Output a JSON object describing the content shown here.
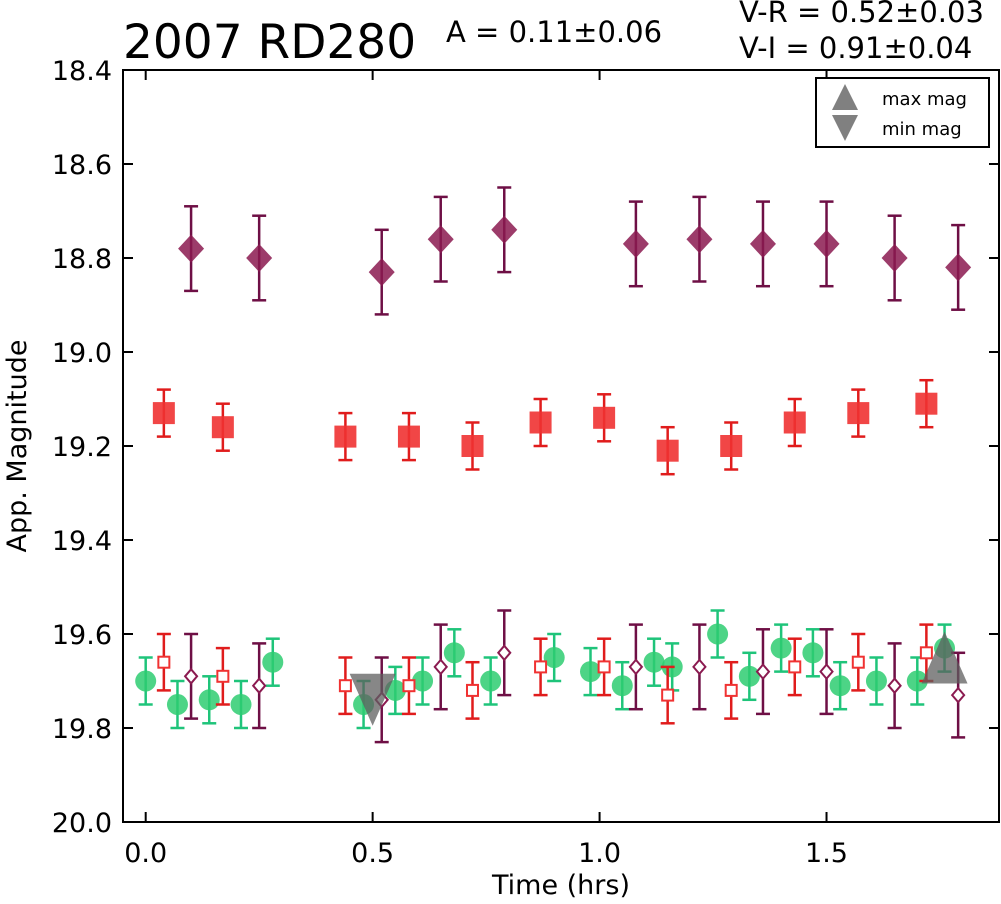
{
  "chart_data": {
    "type": "scatter",
    "title": "2007 RD280",
    "amplitude_text": "A  = 0.11±0.06",
    "color_index_text": [
      "V-R = 0.52±0.03",
      "V-I  = 0.91±0.04"
    ],
    "xlabel": "Time (hrs)",
    "ylabel": "App. Magnitude",
    "xlim": [
      -0.05,
      1.88
    ],
    "ylim": [
      18.4,
      20.0
    ],
    "y_inverted": true,
    "grid": false,
    "legend_position": "top-right",
    "x_ticks": [
      "0.0",
      "0.5",
      "1.0",
      "1.5"
    ],
    "y_ticks": [
      "18.4",
      "18.6",
      "18.8",
      "19.0",
      "19.2",
      "19.4",
      "19.6",
      "19.8",
      "20.0"
    ],
    "legend": [
      {
        "label": "max mag",
        "marker": "triangle-up",
        "color": "#808080"
      },
      {
        "label": "min mag",
        "marker": "triangle-down",
        "color": "#808080"
      }
    ],
    "series": [
      {
        "marker": "diamond-filled",
        "color": "#8b1a50",
        "err_color": "#6e0f45",
        "x": [
          0.1,
          0.25,
          0.52,
          0.65,
          0.79,
          1.08,
          1.22,
          1.36,
          1.5,
          1.65,
          1.79
        ],
        "y": [
          18.78,
          18.8,
          18.83,
          18.76,
          18.74,
          18.77,
          18.76,
          18.77,
          18.77,
          18.8,
          18.82
        ],
        "err": [
          0.09,
          0.09,
          0.09,
          0.09,
          0.09,
          0.09,
          0.09,
          0.09,
          0.09,
          0.09,
          0.09
        ]
      },
      {
        "marker": "square-filled",
        "color": "#f03232",
        "err_color": "#e01c1c",
        "x": [
          0.04,
          0.17,
          0.44,
          0.58,
          0.72,
          0.87,
          1.01,
          1.15,
          1.29,
          1.43,
          1.57,
          1.72
        ],
        "y": [
          19.13,
          19.16,
          19.18,
          19.18,
          19.2,
          19.15,
          19.14,
          19.21,
          19.2,
          19.15,
          19.13,
          19.11
        ],
        "err": [
          0.05,
          0.05,
          0.05,
          0.05,
          0.05,
          0.05,
          0.05,
          0.05,
          0.05,
          0.05,
          0.05,
          0.05
        ]
      },
      {
        "marker": "circle-filled",
        "color": "#2ecc71",
        "err_color": "#1fc47a",
        "x": [
          0.0,
          0.07,
          0.14,
          0.21,
          0.28,
          0.48,
          0.55,
          0.61,
          0.68,
          0.76,
          0.9,
          0.98,
          1.05,
          1.12,
          1.16,
          1.26,
          1.33,
          1.4,
          1.47,
          1.53,
          1.61,
          1.7,
          1.76
        ],
        "y": [
          19.7,
          19.75,
          19.74,
          19.75,
          19.66,
          19.75,
          19.72,
          19.7,
          19.64,
          19.7,
          19.65,
          19.68,
          19.71,
          19.66,
          19.67,
          19.6,
          19.69,
          19.63,
          19.64,
          19.71,
          19.7,
          19.7,
          19.63
        ],
        "err": [
          0.05,
          0.05,
          0.05,
          0.05,
          0.05,
          0.05,
          0.05,
          0.05,
          0.05,
          0.05,
          0.05,
          0.05,
          0.05,
          0.05,
          0.05,
          0.05,
          0.05,
          0.05,
          0.05,
          0.05,
          0.05,
          0.05,
          0.05
        ]
      },
      {
        "marker": "square-open",
        "color": "#f03232",
        "err_color": "#e01c1c",
        "x": [
          0.04,
          0.17,
          0.44,
          0.58,
          0.72,
          0.87,
          1.01,
          1.15,
          1.29,
          1.43,
          1.57,
          1.72
        ],
        "y": [
          19.66,
          19.69,
          19.71,
          19.71,
          19.72,
          19.67,
          19.67,
          19.73,
          19.72,
          19.67,
          19.66,
          19.64
        ],
        "err": [
          0.06,
          0.06,
          0.06,
          0.06,
          0.06,
          0.06,
          0.06,
          0.06,
          0.06,
          0.06,
          0.06,
          0.06
        ]
      },
      {
        "marker": "diamond-open",
        "color": "#8b1a50",
        "err_color": "#6e0f45",
        "x": [
          0.1,
          0.25,
          0.52,
          0.65,
          0.79,
          1.08,
          1.22,
          1.36,
          1.5,
          1.65,
          1.79
        ],
        "y": [
          19.69,
          19.71,
          19.74,
          19.67,
          19.64,
          19.67,
          19.67,
          19.68,
          19.68,
          19.71,
          19.73
        ],
        "err": [
          0.09,
          0.09,
          0.09,
          0.09,
          0.09,
          0.09,
          0.09,
          0.09,
          0.09,
          0.09,
          0.09
        ]
      }
    ],
    "extrema_markers": [
      {
        "type": "min mag",
        "marker": "triangle-down",
        "x": 0.5,
        "y": 19.74
      },
      {
        "type": "max mag",
        "marker": "triangle-up",
        "x": 1.76,
        "y": 19.65
      }
    ]
  }
}
